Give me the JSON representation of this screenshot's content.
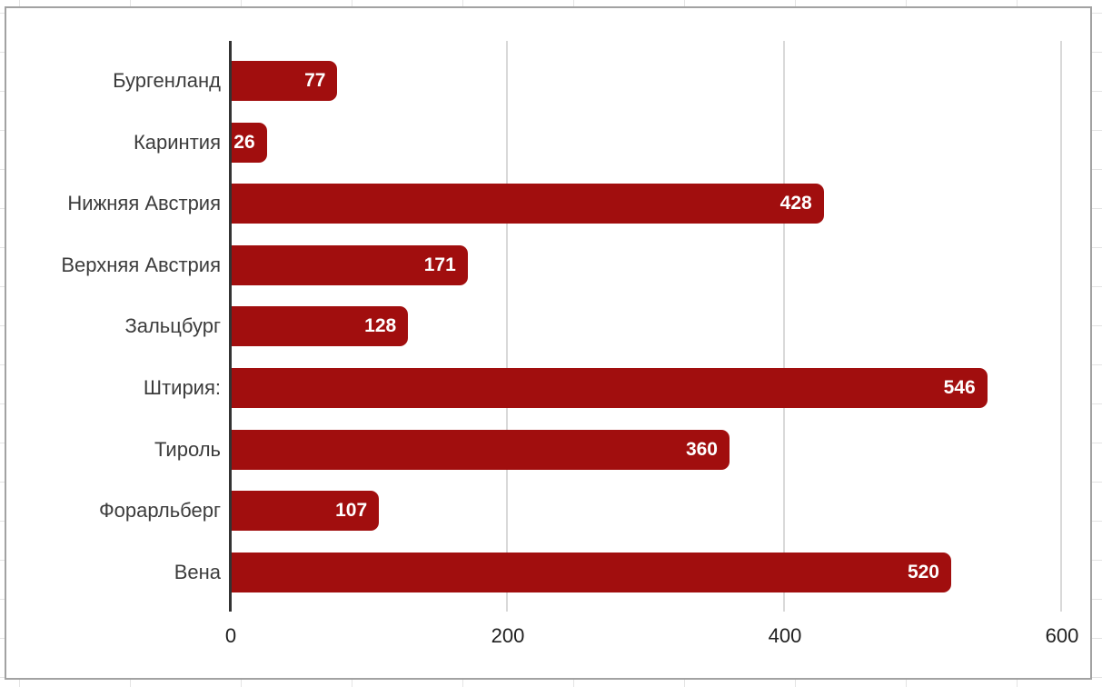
{
  "chart_data": {
    "type": "bar",
    "orientation": "horizontal",
    "title": "",
    "xlabel": "",
    "ylabel": "",
    "categories": [
      "Бургенланд",
      "Каринтия",
      "Нижняя Австрия",
      "Верхняя Австрия",
      "Зальцбург",
      "Штирия:",
      "Тироль",
      "Форарльберг",
      "Вена"
    ],
    "values": [
      77,
      26,
      428,
      171,
      128,
      546,
      360,
      107,
      520
    ],
    "xlim": [
      0,
      600
    ],
    "x_ticks": [
      0,
      200,
      400,
      600
    ],
    "grid": "vertical",
    "legend_position": "none",
    "bar_color": "#a10e0e",
    "value_label_color": "#ffffff",
    "axis_color": "#333333",
    "gridline_color": "#d9d9d9",
    "category_label_color": "#3c3c3c",
    "tick_label_color": "#1f1f1f",
    "panel_border_color": "#a2a2a2"
  }
}
